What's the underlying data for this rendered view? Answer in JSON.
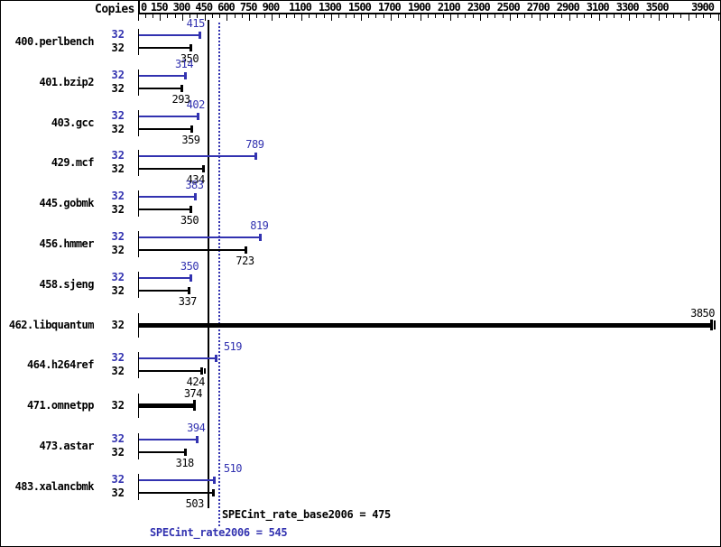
{
  "header": {
    "copies_label": "Copies"
  },
  "axis": {
    "min": 0,
    "max": 3900,
    "minor_tick_step": 50,
    "major_ticks": [
      {
        "value": 0,
        "label": "0"
      },
      {
        "value": 150,
        "label": "150"
      },
      {
        "value": 300,
        "label": "300"
      },
      {
        "value": 450,
        "label": "450"
      },
      {
        "value": 600,
        "label": "600"
      },
      {
        "value": 750,
        "label": "750"
      },
      {
        "value": 900,
        "label": "900"
      },
      {
        "value": 1100,
        "label": "1100"
      },
      {
        "value": 1300,
        "label": "1300"
      },
      {
        "value": 1500,
        "label": "1500"
      },
      {
        "value": 1700,
        "label": "1700"
      },
      {
        "value": 1900,
        "label": "1900"
      },
      {
        "value": 2100,
        "label": "2100"
      },
      {
        "value": 2300,
        "label": "2300"
      },
      {
        "value": 2500,
        "label": "2500"
      },
      {
        "value": 2700,
        "label": "2700"
      },
      {
        "value": 2900,
        "label": "2900"
      },
      {
        "value": 3100,
        "label": "3100"
      },
      {
        "value": 3300,
        "label": "3300"
      },
      {
        "value": 3500,
        "label": "3500"
      },
      {
        "value": 3700,
        "label": ""
      },
      {
        "value": 3900,
        "label": "3900"
      }
    ]
  },
  "chart_data": {
    "type": "bar",
    "orientation": "horizontal",
    "xlabel_position": "top",
    "xlim": [
      0,
      3950
    ],
    "series": [
      {
        "name": "peak",
        "color": "#3232b0"
      },
      {
        "name": "base",
        "color": "#000000"
      }
    ],
    "benchmarks": [
      {
        "name": "400.perlbench",
        "copies": 32,
        "peak": 415,
        "base": 350
      },
      {
        "name": "401.bzip2",
        "copies": 32,
        "peak": 314,
        "base": 293
      },
      {
        "name": "403.gcc",
        "copies": 32,
        "peak": 402,
        "base": 359
      },
      {
        "name": "429.mcf",
        "copies": 32,
        "peak": 789,
        "base": 434
      },
      {
        "name": "445.gobmk",
        "copies": 32,
        "peak": 383,
        "base": 350
      },
      {
        "name": "456.hmmer",
        "copies": 32,
        "peak": 819,
        "base": 723
      },
      {
        "name": "458.sjeng",
        "copies": 32,
        "peak": 350,
        "base": 337
      },
      {
        "name": "462.libquantum",
        "copies": 32,
        "peak": 3850,
        "base": 3850,
        "single_bar": true,
        "double_cap": true
      },
      {
        "name": "464.h264ref",
        "copies": 32,
        "peak": 519,
        "base": 424,
        "base_double_cap": true
      },
      {
        "name": "471.omnetpp",
        "copies": 32,
        "peak": 374,
        "base": 374,
        "single_bar": true
      },
      {
        "name": "473.astar",
        "copies": 32,
        "peak": 394,
        "base": 318
      },
      {
        "name": "483.xalancbmk",
        "copies": 32,
        "peak": 510,
        "base": 503
      }
    ]
  },
  "summary": {
    "base": {
      "text": "SPECint_rate_base2006 = 475",
      "value": 475
    },
    "peak": {
      "text": "SPECint_rate2006 = 545",
      "value": 545
    }
  },
  "colors": {
    "peak_blue": "#3232b0",
    "base_black": "#000000"
  }
}
